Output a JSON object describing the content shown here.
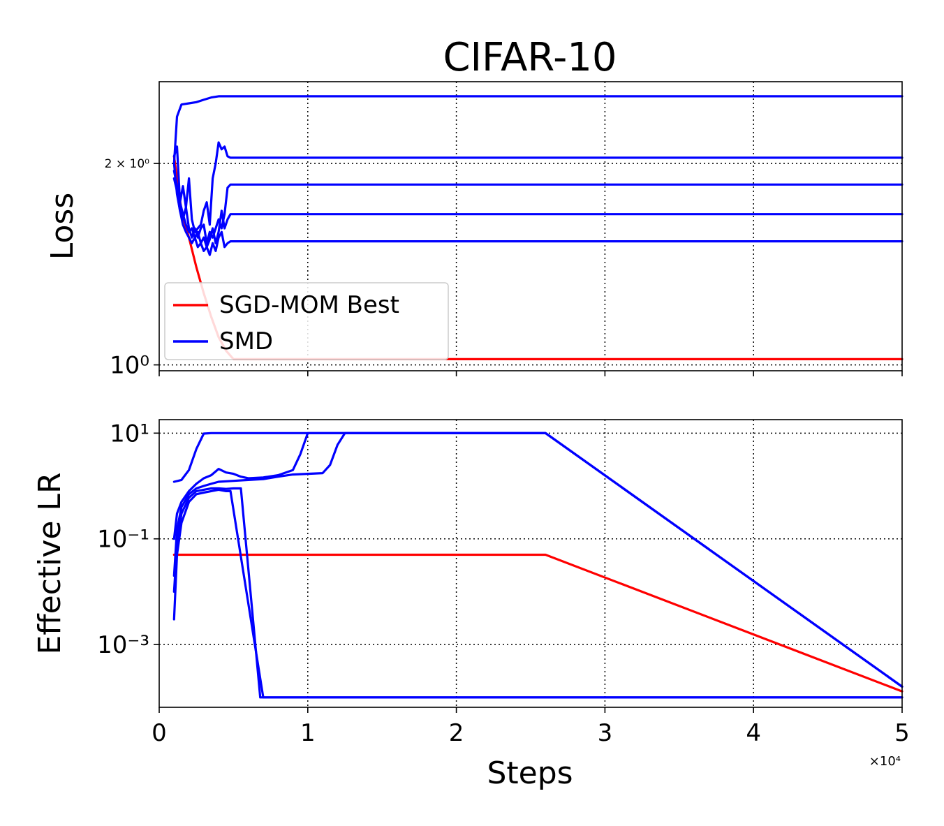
{
  "chart_data": [
    {
      "type": "line",
      "title": "CIFAR-10",
      "xlabel": "",
      "ylabel": "Loss",
      "yscale": "log",
      "xlim": [
        0,
        50000
      ],
      "ylim": [
        0.98,
        2.65
      ],
      "yticks": [
        {
          "value": 2,
          "label": "2 × 10⁰"
        },
        {
          "value": 1,
          "label": "10⁰"
        }
      ],
      "grid": true,
      "legend": {
        "placement": "lower-left",
        "entries": [
          {
            "label": "SGD-MOM Best",
            "color": "#ff0000"
          },
          {
            "label": "SMD",
            "color": "#0000ff"
          }
        ]
      },
      "series": [
        {
          "name": "SGD-MOM Best",
          "color": "#ff0000",
          "x": [
            1000,
            1200,
            1500,
            2000,
            2500,
            3000,
            3500,
            4000,
            4500,
            5000,
            50000
          ],
          "y": [
            2.05,
            1.9,
            1.7,
            1.55,
            1.4,
            1.28,
            1.18,
            1.1,
            1.05,
            1.02,
            1.02
          ]
        },
        {
          "color": "#0000ff",
          "x": [
            1000,
            1200,
            1500,
            2000,
            2500,
            3000,
            3500,
            4000,
            4500,
            5000,
            50000
          ],
          "y": [
            2.0,
            2.35,
            2.45,
            2.46,
            2.47,
            2.49,
            2.51,
            2.52,
            2.52,
            2.52,
            2.52
          ]
        },
        {
          "color": "#0000ff",
          "x": [
            1000,
            1200,
            1400,
            1600,
            1800,
            2000,
            2200,
            2400,
            2600,
            2800,
            3000,
            3200,
            3400,
            3600,
            3800,
            4000,
            4200,
            4400,
            4600,
            4800,
            50000
          ],
          "y": [
            2.05,
            2.12,
            1.75,
            1.85,
            1.72,
            1.9,
            1.65,
            1.58,
            1.6,
            1.62,
            1.7,
            1.75,
            1.62,
            1.9,
            2.0,
            2.15,
            2.1,
            2.12,
            2.05,
            2.04,
            2.04
          ]
        },
        {
          "color": "#0000ff",
          "x": [
            1000,
            1200,
            1400,
            1600,
            1800,
            2000,
            2200,
            2400,
            2600,
            2800,
            3000,
            3200,
            3400,
            3600,
            3800,
            4000,
            4200,
            4400,
            4600,
            4800,
            50000
          ],
          "y": [
            2.0,
            1.8,
            1.7,
            1.65,
            1.72,
            1.6,
            1.55,
            1.6,
            1.55,
            1.6,
            1.62,
            1.52,
            1.58,
            1.55,
            1.6,
            1.65,
            1.6,
            1.68,
            1.84,
            1.86,
            1.86
          ]
        },
        {
          "color": "#0000ff",
          "x": [
            1000,
            1200,
            1400,
            1600,
            1800,
            2000,
            2200,
            2400,
            2600,
            2800,
            3000,
            3200,
            3400,
            3600,
            3800,
            4000,
            4200,
            4400,
            4600,
            4800,
            50000
          ],
          "y": [
            1.95,
            1.85,
            1.75,
            1.68,
            1.62,
            1.58,
            1.6,
            1.55,
            1.58,
            1.52,
            1.55,
            1.5,
            1.54,
            1.6,
            1.52,
            1.58,
            1.7,
            1.6,
            1.65,
            1.68,
            1.68
          ]
        },
        {
          "color": "#0000ff",
          "x": [
            1000,
            1200,
            1400,
            1600,
            1800,
            2000,
            2200,
            2400,
            2600,
            2800,
            3000,
            3200,
            3400,
            3600,
            3800,
            4000,
            4200,
            4400,
            4600,
            4800,
            50000
          ],
          "y": [
            1.9,
            1.82,
            1.7,
            1.62,
            1.58,
            1.55,
            1.52,
            1.55,
            1.5,
            1.52,
            1.48,
            1.5,
            1.46,
            1.52,
            1.48,
            1.55,
            1.58,
            1.5,
            1.52,
            1.53,
            1.53
          ]
        }
      ]
    },
    {
      "type": "line",
      "title": "",
      "xlabel": "Steps",
      "ylabel": "Effective LR",
      "yscale": "log",
      "xlim": [
        0,
        50000
      ],
      "ylim": [
        6.5e-05,
        18
      ],
      "xticks": [
        "0",
        "1",
        "2",
        "3",
        "4",
        "5"
      ],
      "x_multiplier": "×10⁴",
      "yticks": [
        {
          "value": 10,
          "label": "10¹"
        },
        {
          "value": 0.1,
          "label": "10⁻¹"
        },
        {
          "value": 0.001,
          "label": "10⁻³"
        }
      ],
      "grid": true,
      "series": [
        {
          "name": "SGD-MOM Best",
          "color": "#ff0000",
          "x": [
            1000,
            26000,
            50000
          ],
          "y": [
            0.05,
            0.05,
            0.00013
          ]
        },
        {
          "color": "#0000ff",
          "x": [
            1000,
            1500,
            2000,
            2500,
            3000,
            3500,
            26000,
            50000
          ],
          "y": [
            1.2,
            1.3,
            2.0,
            5.0,
            9.8,
            10,
            10,
            0.00016
          ]
        },
        {
          "color": "#0000ff",
          "x": [
            1000,
            1200,
            1500,
            2000,
            2500,
            3000,
            3500,
            4000,
            4500,
            5000,
            5500,
            6000,
            7000,
            8000,
            9000,
            9500,
            10000,
            26000,
            50000
          ],
          "y": [
            0.1,
            0.3,
            0.5,
            0.8,
            1.1,
            1.4,
            1.6,
            2.1,
            1.8,
            1.7,
            1.5,
            1.4,
            1.45,
            1.6,
            2.0,
            4.0,
            10,
            10,
            0.00016
          ]
        },
        {
          "color": "#0000ff",
          "x": [
            1000,
            1200,
            1500,
            2000,
            2500,
            3000,
            3500,
            4000,
            5000,
            6000,
            7000,
            8000,
            9000,
            10000,
            11000,
            11500,
            12000,
            12500,
            26000,
            50000
          ],
          "y": [
            0.02,
            0.15,
            0.4,
            0.7,
            0.9,
            1.0,
            1.1,
            1.2,
            1.25,
            1.3,
            1.35,
            1.5,
            1.65,
            1.7,
            1.75,
            2.5,
            6.0,
            10,
            10,
            0.00016
          ]
        },
        {
          "color": "#0000ff",
          "x": [
            1000,
            1200,
            1500,
            2000,
            2500,
            3000,
            3500,
            4000,
            4500,
            5000,
            5500,
            6800,
            7500,
            50000
          ],
          "y": [
            0.01,
            0.08,
            0.3,
            0.6,
            0.8,
            0.85,
            0.9,
            0.9,
            0.88,
            0.9,
            0.9,
            0.0001,
            0.0001,
            0.0001
          ]
        },
        {
          "color": "#0000ff",
          "x": [
            1000,
            1200,
            1500,
            2000,
            2500,
            3000,
            3500,
            4000,
            4500,
            4800,
            7000,
            50000
          ],
          "y": [
            0.003,
            0.05,
            0.2,
            0.5,
            0.7,
            0.75,
            0.8,
            0.85,
            0.8,
            0.8,
            0.0001,
            0.0001
          ]
        }
      ]
    }
  ]
}
